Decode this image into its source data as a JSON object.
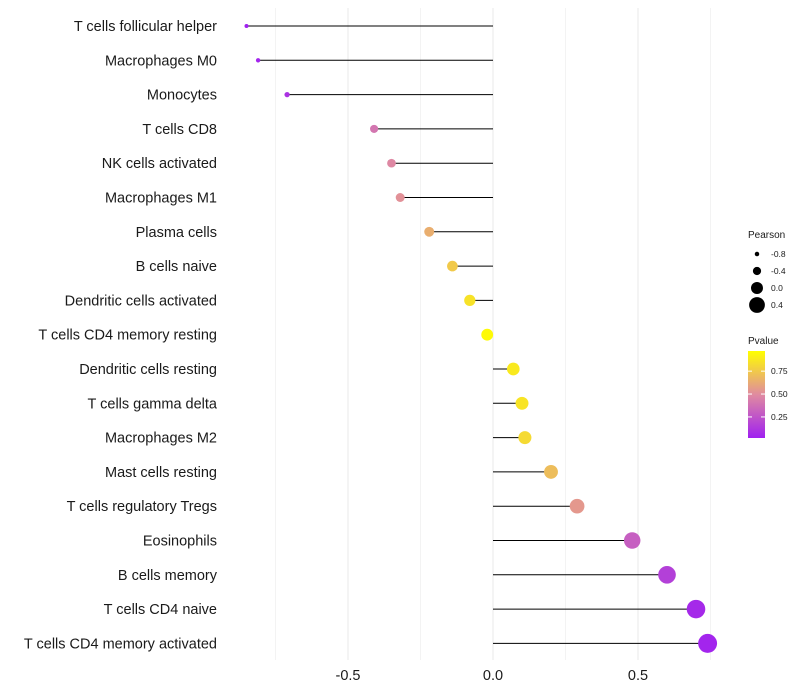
{
  "chart_data": {
    "type": "lollipop",
    "title": "",
    "xlabel": "",
    "ylabel": "",
    "xlim": [
      -0.88,
      0.82
    ],
    "xticks": [
      -0.5,
      0.0,
      0.5
    ],
    "xtick_labels": [
      "-0.5",
      "0.0",
      "0.5"
    ],
    "grid": true,
    "categories": [
      "T cells follicular helper",
      "Macrophages M0",
      "Monocytes",
      "T cells CD8",
      "NK cells activated",
      "Macrophages M1",
      "Plasma cells",
      "B cells naive",
      "Dendritic cells activated",
      "T cells CD4 memory resting",
      "Dendritic cells resting",
      "T cells gamma delta",
      "Macrophages M2",
      "Mast cells resting",
      "T cells regulatory  Tregs ",
      "Eosinophils",
      "B cells memory",
      "T cells CD4 naive",
      "T cells CD4 memory activated"
    ],
    "pearson": [
      -0.85,
      -0.81,
      -0.71,
      -0.41,
      -0.35,
      -0.32,
      -0.22,
      -0.14,
      -0.08,
      -0.02,
      0.07,
      0.1,
      0.11,
      0.2,
      0.29,
      0.48,
      0.6,
      0.7,
      0.74
    ],
    "pvalue": [
      0.02,
      0.04,
      0.1,
      0.4,
      0.48,
      0.52,
      0.64,
      0.75,
      0.85,
      0.95,
      0.88,
      0.86,
      0.82,
      0.7,
      0.55,
      0.3,
      0.16,
      0.06,
      0.04
    ],
    "legend": {
      "size_title": "Pearson",
      "size_labels": [
        "-0.8",
        "-0.4",
        "0.0",
        "0.4"
      ],
      "size_values": [
        -0.8,
        -0.4,
        0.0,
        0.4
      ],
      "color_title": "Pvalue",
      "color_labels": [
        "0.75",
        "0.50",
        "0.25"
      ],
      "color_values": [
        0.75,
        0.5,
        0.25
      ],
      "color_range": [
        0.02,
        0.97
      ],
      "placement": "right"
    },
    "colors": {
      "low": "#a020f0",
      "mid": "#e08ba0",
      "high": "#ffff00",
      "stem": "#000000",
      "grid": "#ebebeb"
    }
  }
}
